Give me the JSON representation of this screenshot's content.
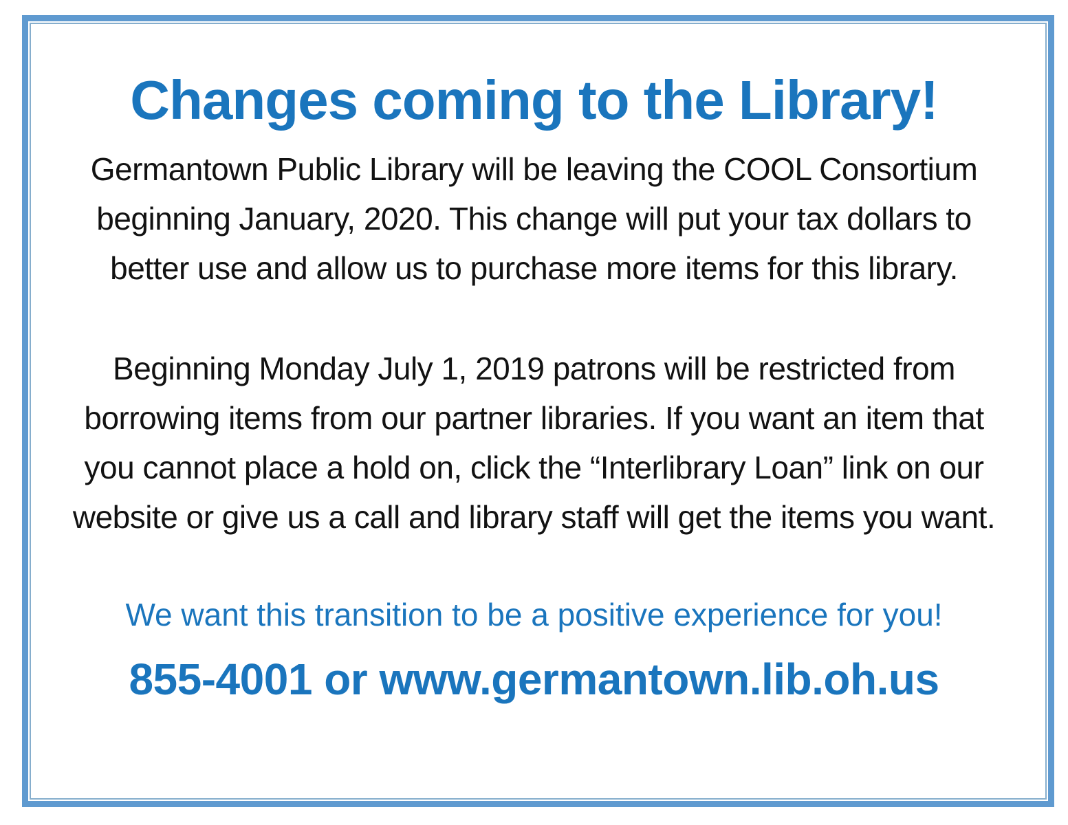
{
  "flyer": {
    "headline": "Changes coming to the Library!",
    "paragraph1_lines": [
      "Germantown Public Library will be leaving the COOL Consortium",
      "beginning January, 2020. This change will put your tax dollars to",
      "better use and allow us to purchase more items for this library."
    ],
    "paragraph2_lines": [
      "Beginning Monday July 1, 2019 patrons will be restricted from",
      "borrowing items from our partner libraries. If you want an item that",
      "you cannot place a hold on, click the “Interlibrary Loan” link on our",
      "website or give us a call and library staff will get the items you want."
    ],
    "closing_line": "We want this transition to be a positive experience for you!",
    "contact_line": "855-4001 or www.germantown.lib.oh.us",
    "phone": "855-4001",
    "website": "www.germantown.lib.oh.us",
    "colors": {
      "accent_blue": "#1a75bd",
      "body_text": "#121212",
      "border_outer": "#5f9ad0",
      "border_inner": "#86aecd",
      "background": "#ffffff"
    }
  }
}
